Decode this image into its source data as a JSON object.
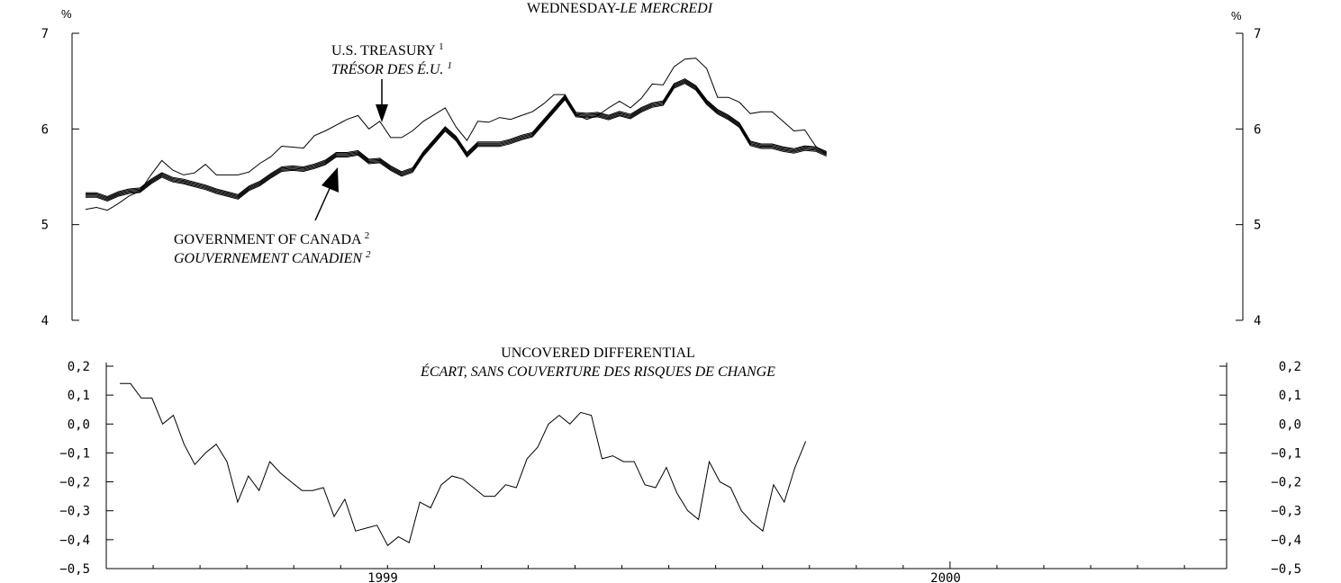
{
  "chart_data": [
    {
      "type": "line",
      "title": "WEDNESDAY-",
      "title_italic": "LE MERCREDI",
      "ylabel_left": "%",
      "ylabel_right": "%",
      "ylim": [
        4,
        7
      ],
      "y_ticks": [
        "7",
        "6",
        "5",
        "4"
      ],
      "series": [
        {
          "name": "U.S. TREASURY",
          "name_fr": "TRÉSOR DES É.U.",
          "footnote": "1",
          "style": "thin",
          "values": [
            5.16,
            5.18,
            5.15,
            5.22,
            5.3,
            5.35,
            5.52,
            5.67,
            5.57,
            5.52,
            5.54,
            5.63,
            5.52,
            5.52,
            5.52,
            5.55,
            5.64,
            5.71,
            5.82,
            5.81,
            5.8,
            5.93,
            5.98,
            6.04,
            6.1,
            6.14,
            6.0,
            6.08,
            5.91,
            5.91,
            5.98,
            6.08,
            6.15,
            6.22,
            6.02,
            5.88,
            6.08,
            6.07,
            6.12,
            6.1,
            6.14,
            6.18,
            6.26,
            6.36,
            6.36,
            6.15,
            6.1,
            6.14,
            6.22,
            6.29,
            6.22,
            6.32,
            6.47,
            6.46,
            6.65,
            6.73,
            6.74,
            6.63,
            6.33,
            6.33,
            6.28,
            6.16,
            6.18,
            6.18,
            6.08,
            5.98,
            5.99,
            5.82,
            5.74
          ]
        },
        {
          "name": "GOVERNMENT OF CANADA",
          "name_fr": "GOUVERNEMENT CANADIEN",
          "footnote": "2",
          "style": "thick",
          "values": [
            5.31,
            5.31,
            5.27,
            5.32,
            5.35,
            5.36,
            5.45,
            5.52,
            5.47,
            5.45,
            5.42,
            5.39,
            5.35,
            5.32,
            5.29,
            5.38,
            5.43,
            5.51,
            5.58,
            5.59,
            5.58,
            5.61,
            5.65,
            5.73,
            5.73,
            5.75,
            5.66,
            5.67,
            5.59,
            5.53,
            5.57,
            5.74,
            5.87,
            6.0,
            5.9,
            5.73,
            5.84,
            5.84,
            5.84,
            5.87,
            5.91,
            5.94,
            6.07,
            6.2,
            6.33,
            6.15,
            6.14,
            6.15,
            6.12,
            6.16,
            6.13,
            6.2,
            6.25,
            6.27,
            6.45,
            6.5,
            6.43,
            6.28,
            6.18,
            6.12,
            6.04,
            5.85,
            5.82,
            5.82,
            5.79,
            5.77,
            5.8,
            5.79,
            5.74
          ]
        }
      ]
    },
    {
      "type": "line",
      "title": "UNCOVERED DIFFERENTIAL",
      "subtitle": "ÉCART, SANS COUVERTURE DES RISQUES DE CHANGE",
      "ylim": [
        -0.5,
        0.2
      ],
      "y_ticks": [
        "0.2",
        "0.1",
        "0.0",
        "-0.1",
        "-0.2",
        "-0.3",
        "-0.4",
        "-0.5"
      ],
      "x_ticks": [
        "1999",
        "2000"
      ],
      "series": [
        {
          "style": "thin",
          "values": [
            0.14,
            0.14,
            0.09,
            0.09,
            0.0,
            0.03,
            -0.07,
            -0.14,
            -0.1,
            -0.07,
            -0.13,
            -0.27,
            -0.18,
            -0.23,
            -0.13,
            -0.17,
            -0.2,
            -0.23,
            -0.23,
            -0.22,
            -0.32,
            -0.26,
            -0.37,
            -0.36,
            -0.35,
            -0.42,
            -0.39,
            -0.41,
            -0.27,
            -0.29,
            -0.21,
            -0.18,
            -0.19,
            -0.22,
            -0.25,
            -0.25,
            -0.21,
            -0.22,
            -0.12,
            -0.08,
            0.0,
            0.03,
            0.0,
            0.04,
            0.03,
            -0.12,
            -0.11,
            -0.13,
            -0.13,
            -0.21,
            -0.22,
            -0.15,
            -0.24,
            -0.3,
            -0.33,
            -0.13,
            -0.2,
            -0.22,
            -0.3,
            -0.34,
            -0.37,
            -0.21,
            -0.27,
            -0.15,
            -0.06
          ]
        }
      ]
    }
  ]
}
